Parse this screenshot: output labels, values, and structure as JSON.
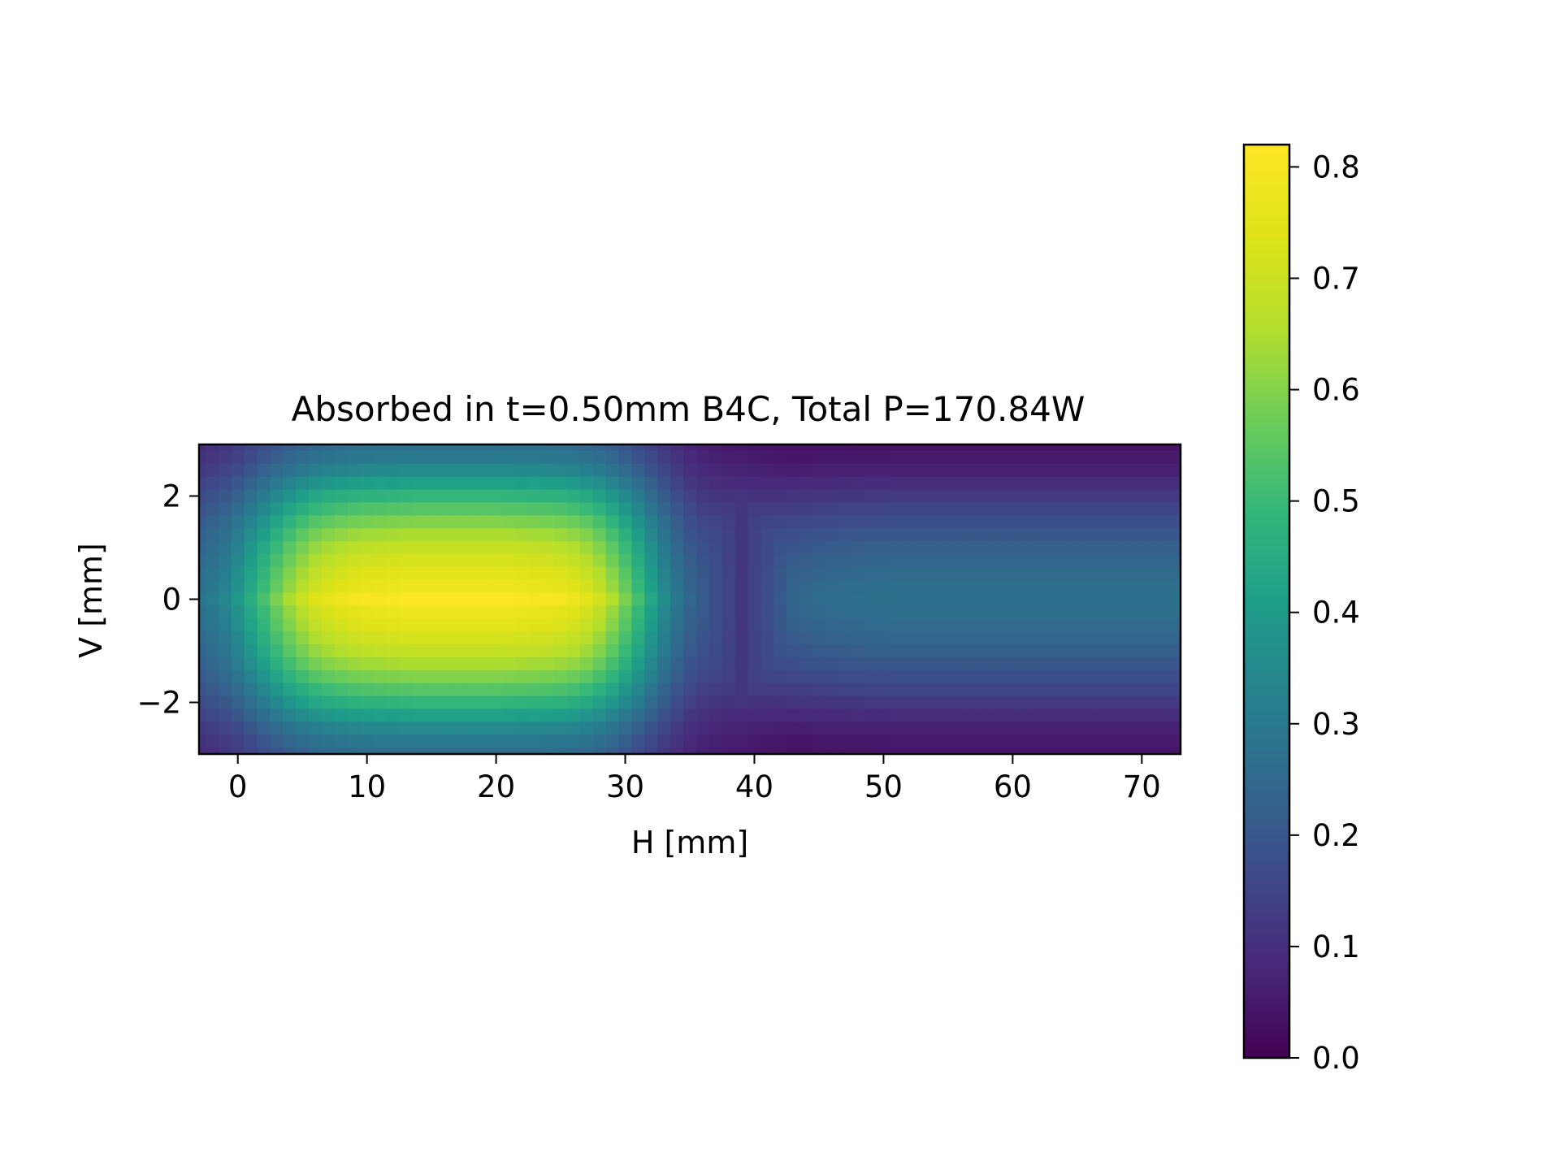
{
  "chart_data": {
    "type": "heatmap",
    "title": "Absorbed in t=0.50mm B4C, Total P=170.84W",
    "xlabel": "H [mm]",
    "ylabel": "V [mm]",
    "xlim": [
      -3,
      73
    ],
    "ylim": [
      -3,
      3
    ],
    "x_ticks": [
      0,
      10,
      20,
      30,
      40,
      50,
      60,
      70
    ],
    "x_tick_labels": [
      "0",
      "10",
      "20",
      "30",
      "40",
      "50",
      "60",
      "70"
    ],
    "y_ticks": [
      -2,
      0,
      2
    ],
    "y_tick_labels": [
      "−2",
      "0",
      "2"
    ],
    "colormap": "viridis",
    "colorbar": {
      "range": [
        0.0,
        0.82
      ],
      "ticks": [
        0.0,
        0.1,
        0.2,
        0.3,
        0.4,
        0.5,
        0.6,
        0.7,
        0.8
      ],
      "tick_labels": [
        "0.0",
        "0.1",
        "0.2",
        "0.3",
        "0.4",
        "0.5",
        "0.6",
        "0.7",
        "0.8"
      ]
    },
    "grid": false,
    "columns_h": [
      -3,
      -2,
      -1,
      0,
      1,
      2,
      3,
      4,
      5,
      6,
      7,
      8,
      9,
      10,
      11,
      12,
      13,
      14,
      15,
      16,
      17,
      18,
      19,
      20,
      21,
      22,
      23,
      24,
      25,
      26,
      27,
      28,
      29,
      30,
      31,
      32,
      33,
      34,
      35,
      36,
      37,
      38,
      39,
      40,
      41,
      42,
      43,
      44,
      45,
      46,
      47,
      48,
      49,
      50,
      51,
      52,
      53,
      54,
      55,
      56,
      57,
      58,
      59,
      60,
      61,
      62,
      63,
      64,
      65,
      66,
      67,
      68,
      69,
      70,
      71,
      72,
      73
    ],
    "rows_v": [
      3.0,
      2.75,
      2.5,
      2.25,
      2.0,
      1.75,
      1.5,
      1.25,
      1.0,
      0.75,
      0.5,
      0.25,
      0.0,
      -0.25,
      -0.5,
      -0.75,
      -1.0,
      -1.25,
      -1.5,
      -1.75,
      -2.0,
      -2.25,
      -2.5,
      -2.75,
      -3.0
    ],
    "h_profile": [
      0.35,
      0.38,
      0.42,
      0.48,
      0.56,
      0.64,
      0.72,
      0.79,
      0.85,
      0.9,
      0.93,
      0.95,
      0.97,
      0.98,
      0.985,
      0.99,
      0.995,
      1.0,
      1.0,
      1.0,
      1.0,
      1.0,
      1.0,
      1.0,
      0.995,
      0.99,
      0.985,
      0.98,
      0.97,
      0.95,
      0.92,
      0.87,
      0.8,
      0.72,
      0.63,
      0.53,
      0.44,
      0.36,
      0.3,
      0.27,
      0.26,
      0.26,
      0.27,
      0.28,
      0.29,
      0.3,
      0.31,
      0.32,
      0.33,
      0.335,
      0.34,
      0.345,
      0.35,
      0.35,
      0.355,
      0.355,
      0.355,
      0.355,
      0.355,
      0.355,
      0.355,
      0.355,
      0.355,
      0.355,
      0.355,
      0.355,
      0.355,
      0.355,
      0.355,
      0.355,
      0.355,
      0.355,
      0.355,
      0.355,
      0.355,
      0.355,
      0.355
    ],
    "v_profile_left": [
      0.33,
      0.37,
      0.43,
      0.51,
      0.59,
      0.66,
      0.73,
      0.79,
      0.84,
      0.88,
      0.92,
      0.95,
      1.0,
      0.95,
      0.92,
      0.88,
      0.84,
      0.79,
      0.73,
      0.66,
      0.59,
      0.51,
      0.43,
      0.37,
      0.33
    ],
    "v_profile_right": [
      0.14,
      0.18,
      0.24,
      0.33,
      0.43,
      0.53,
      0.62,
      0.7,
      0.77,
      0.83,
      0.88,
      0.92,
      0.94,
      0.92,
      0.88,
      0.83,
      0.77,
      0.7,
      0.62,
      0.53,
      0.43,
      0.33,
      0.24,
      0.18,
      0.14
    ],
    "left_peak": 0.82,
    "right_peak": 0.29,
    "transition_h": [
      33,
      44
    ],
    "valley_h": 39,
    "valley_value": 0.09
  }
}
